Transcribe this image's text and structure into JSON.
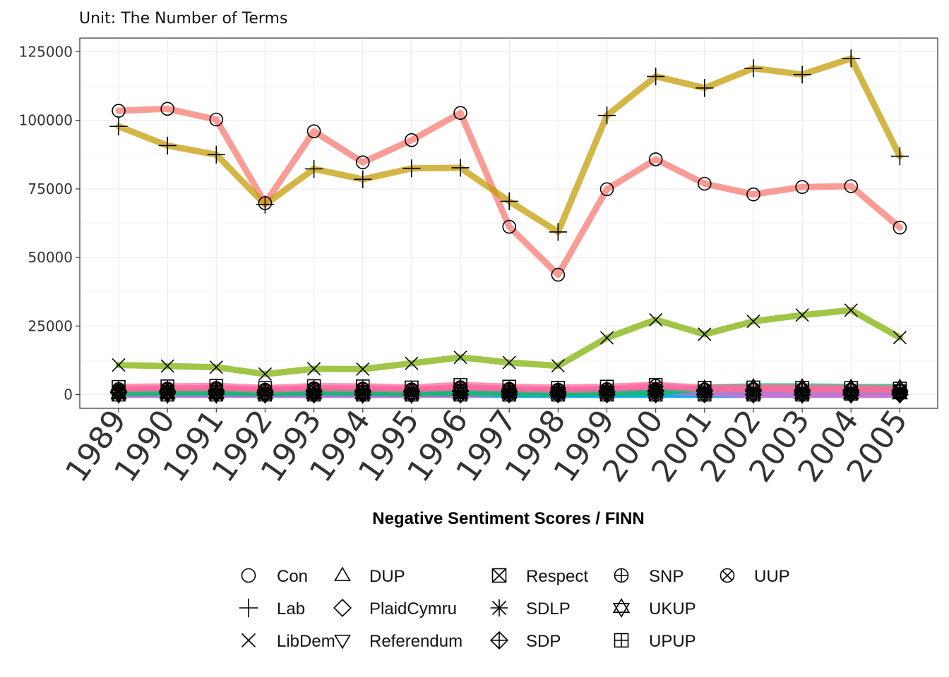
{
  "chart_data": {
    "type": "line",
    "subtitle": "Unit: The Number of Terms",
    "xlabel": "Negative Sentiment Scores / FINN",
    "ylabel": "",
    "x": [
      "1989",
      "1990",
      "1991",
      "1992",
      "1993",
      "1994",
      "1995",
      "1996",
      "1997",
      "1998",
      "1999",
      "2000",
      "2001",
      "2002",
      "2003",
      "2004",
      "2005"
    ],
    "ylim": [
      -5000,
      130000
    ],
    "yticks": [
      0,
      25000,
      50000,
      75000,
      100000,
      125000
    ],
    "ytick_labels": [
      "0",
      "25000",
      "50000",
      "75000",
      "100000",
      "125000"
    ],
    "grid": true,
    "legend_position": "bottom",
    "series": [
      {
        "name": "Con",
        "color": "#F8766D",
        "marker": "circle",
        "values": [
          103500,
          104200,
          100300,
          69800,
          96000,
          84700,
          92800,
          102700,
          61200,
          43700,
          74900,
          85800,
          76900,
          73000,
          75700,
          76000,
          60900
        ]
      },
      {
        "name": "Lab",
        "color": "#C49A00",
        "marker": "plus",
        "values": [
          97800,
          90800,
          87500,
          69300,
          82300,
          78500,
          82500,
          82700,
          70500,
          59300,
          101800,
          116000,
          111800,
          119000,
          116700,
          122600,
          86900
        ]
      },
      {
        "name": "LibDem",
        "color": "#7CAE00",
        "marker": "x",
        "values": [
          10800,
          10400,
          10000,
          7500,
          9400,
          9300,
          11400,
          13600,
          11700,
          10500,
          20700,
          27300,
          22000,
          26700,
          29000,
          30800,
          20800
        ]
      },
      {
        "name": "DUP",
        "color": "#00BE67",
        "marker": "triangle",
        "values": [
          500,
          600,
          700,
          300,
          700,
          600,
          400,
          500,
          400,
          400,
          500,
          500,
          2500,
          3000,
          3000,
          2800,
          2800
        ]
      },
      {
        "name": "PlaidCymru",
        "color": "#00C1A9",
        "marker": "diamond",
        "values": [
          1000,
          1100,
          1200,
          900,
          1300,
          1100,
          1000,
          1400,
          1100,
          900,
          1100,
          1300,
          1500,
          1700,
          1600,
          1500,
          1300
        ]
      },
      {
        "name": "Referendum",
        "color": "#00BFC4",
        "marker": "triangle-down",
        "values": [
          0,
          0,
          0,
          0,
          0,
          0,
          0,
          1000,
          0,
          0,
          0,
          0,
          0,
          0,
          0,
          0,
          0
        ]
      },
      {
        "name": "Respect",
        "color": "#00A9FF",
        "marker": "square-x",
        "values": [
          0,
          0,
          0,
          0,
          0,
          0,
          0,
          0,
          0,
          0,
          0,
          0,
          0,
          0,
          0,
          300,
          1200
        ]
      },
      {
        "name": "SDLP",
        "color": "#8494FF",
        "marker": "asterisk",
        "values": [
          800,
          900,
          1000,
          700,
          1000,
          900,
          1000,
          1100,
          900,
          800,
          900,
          1000,
          1200,
          1100,
          900,
          800,
          700
        ]
      },
      {
        "name": "SDP",
        "color": "#C77CFF",
        "marker": "diamond-plus",
        "values": [
          700,
          500,
          300,
          0,
          0,
          0,
          0,
          0,
          0,
          0,
          0,
          0,
          0,
          0,
          0,
          0,
          0
        ]
      },
      {
        "name": "SNP",
        "color": "#ED68ED",
        "marker": "circle-plus",
        "values": [
          1500,
          1800,
          2000,
          1500,
          2000,
          1900,
          1600,
          2300,
          1700,
          1500,
          1800,
          2000,
          1800,
          1900,
          1800,
          1700,
          1500
        ]
      },
      {
        "name": "UKUP",
        "color": "#FF61CC",
        "marker": "star-of-david",
        "values": [
          0,
          0,
          0,
          0,
          0,
          0,
          0,
          0,
          600,
          900,
          1200,
          1500,
          500,
          0,
          0,
          0,
          0
        ]
      },
      {
        "name": "UPUP",
        "color": "#FF689F",
        "marker": "square-plus",
        "values": [
          2800,
          3000,
          3200,
          2400,
          3100,
          3000,
          2600,
          3500,
          2900,
          2500,
          2900,
          3500,
          2500,
          2600,
          2500,
          2400,
          2200
        ]
      },
      {
        "name": "UUP",
        "color": "#FF6C91",
        "marker": "circle-x",
        "values": [
          2000,
          2200,
          2400,
          1800,
          2300,
          2200,
          1900,
          2700,
          2100,
          1800,
          2000,
          3200,
          1900,
          2000,
          1900,
          1800,
          1600
        ]
      }
    ]
  }
}
